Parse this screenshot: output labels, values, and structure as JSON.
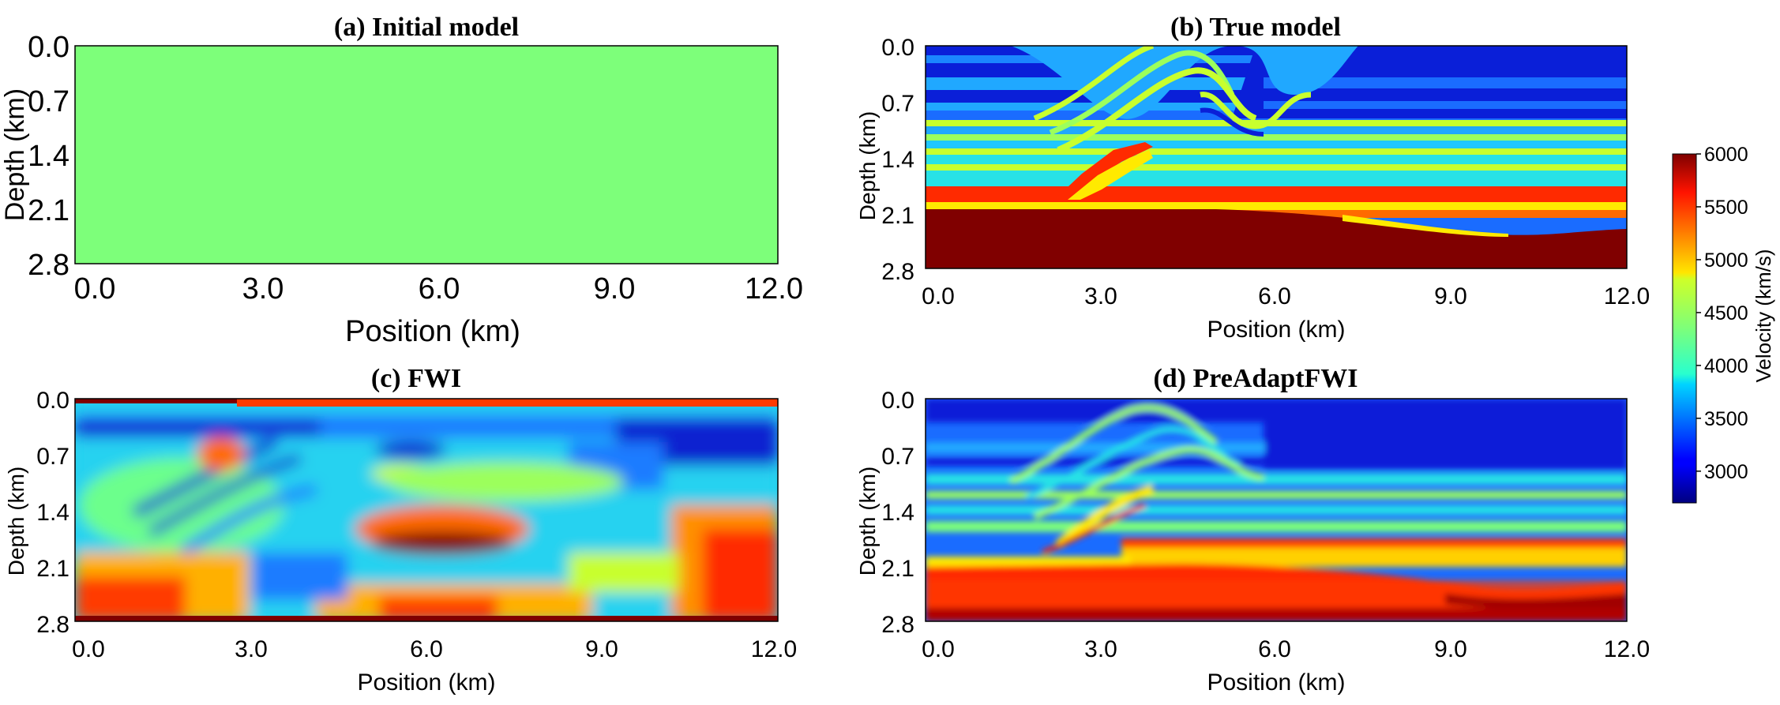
{
  "chart_data": [
    {
      "type": "heatmap",
      "title": "(a) Initial model",
      "xlabel": "Position (km)",
      "ylabel": "Depth (km)",
      "xlim": [
        0,
        12
      ],
      "ylim": [
        0,
        2.8
      ],
      "xticks": [
        "0.0",
        "3.0",
        "6.0",
        "9.0",
        "12.0"
      ],
      "yticks": [
        "0.0",
        "0.7",
        "1.4",
        "2.1",
        "2.8"
      ],
      "description_values": {
        "uniform_velocity_kms": 4500
      }
    },
    {
      "type": "heatmap",
      "title": "(b) True model",
      "xlabel": "Position (km)",
      "ylabel": "Depth (km)",
      "xlim": [
        0,
        12
      ],
      "ylim": [
        0,
        2.8
      ],
      "xticks": [
        "0.0",
        "3.0",
        "6.0",
        "9.0",
        "12.0"
      ],
      "yticks": [
        "0.0",
        "0.7",
        "1.4",
        "2.1",
        "2.8"
      ]
    },
    {
      "type": "heatmap",
      "title": "(c) FWI",
      "xlabel": "Position (km)",
      "ylabel": "Depth (km)",
      "xlim": [
        0,
        12
      ],
      "ylim": [
        0,
        2.8
      ],
      "xticks": [
        "0.0",
        "3.0",
        "6.0",
        "9.0",
        "12.0"
      ],
      "yticks": [
        "0.0",
        "0.7",
        "1.4",
        "2.1",
        "2.8"
      ]
    },
    {
      "type": "heatmap",
      "title": "(d) PreAdaptFWI",
      "xlabel": "Position (km)",
      "ylabel": "Depth (km)",
      "xlim": [
        0,
        12
      ],
      "ylim": [
        0,
        2.8
      ],
      "xticks": [
        "0.0",
        "3.0",
        "6.0",
        "9.0",
        "12.0"
      ],
      "yticks": [
        "0.0",
        "0.7",
        "1.4",
        "2.1",
        "2.8"
      ]
    }
  ],
  "colorbar": {
    "label": "Velocity (km/s)",
    "vmin": 2700,
    "vmax": 6000,
    "ticks": [
      "6000",
      "5500",
      "5000",
      "4500",
      "4000",
      "3500",
      "3000"
    ],
    "tick_values": [
      6000,
      5500,
      5000,
      4500,
      4000,
      3500,
      3000
    ],
    "colormap": "jet"
  }
}
